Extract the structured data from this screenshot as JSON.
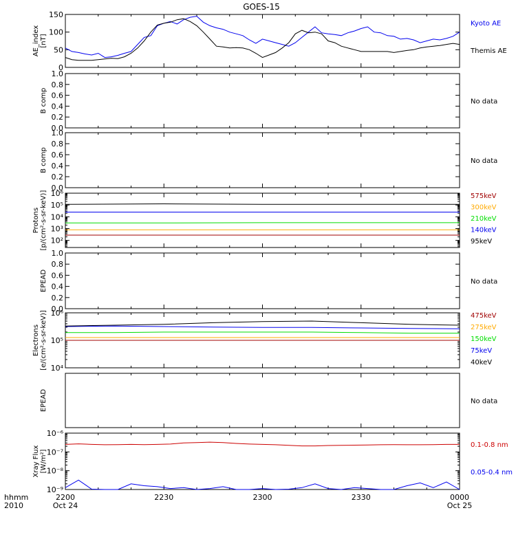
{
  "title": "GOES-15",
  "colors": {
    "black": "#000000",
    "blue": "#0000ee",
    "red": "#cc0000",
    "orange": "#ffaa00",
    "green": "#00dd00",
    "darkred": "#a00000"
  },
  "time_axis": {
    "row_label": "hhmm",
    "year": "2010",
    "ticks": [
      {
        "t": 0,
        "label": "2200",
        "sub": "Oct 24"
      },
      {
        "t": 30,
        "label": "2230",
        "sub": ""
      },
      {
        "t": 60,
        "label": "2300",
        "sub": ""
      },
      {
        "t": 90,
        "label": "2330",
        "sub": ""
      },
      {
        "t": 120,
        "label": "0000",
        "sub": "Oct 25"
      }
    ]
  },
  "chart_data": [
    {
      "type": "line",
      "panel": "ae",
      "ylabel": [
        "AE_index",
        "[nT]"
      ],
      "ylim": [
        0,
        150
      ],
      "yticks": [
        {
          "v": 0,
          "l": "0"
        },
        {
          "v": 50,
          "l": "50"
        },
        {
          "v": 100,
          "l": "100"
        },
        {
          "v": 150,
          "l": "150"
        }
      ],
      "x": [
        0,
        2,
        4,
        6,
        8,
        10,
        12,
        14,
        16,
        18,
        20,
        22,
        24,
        26,
        28,
        30,
        32,
        34,
        36,
        38,
        40,
        42,
        44,
        46,
        48,
        50,
        52,
        54,
        56,
        58,
        60,
        62,
        64,
        66,
        68,
        70,
        72,
        74,
        76,
        78,
        80,
        82,
        84,
        86,
        88,
        90,
        92,
        94,
        96,
        98,
        100,
        102,
        104,
        106,
        108,
        110,
        112,
        114,
        116,
        118,
        120
      ],
      "series": [
        {
          "name": "Kyoto AE",
          "color": "#0000ee",
          "values": [
            55,
            45,
            42,
            38,
            35,
            40,
            28,
            30,
            34,
            40,
            45,
            65,
            85,
            90,
            118,
            125,
            130,
            123,
            135,
            142,
            145,
            128,
            118,
            112,
            108,
            100,
            95,
            90,
            78,
            68,
            80,
            75,
            70,
            65,
            60,
            70,
            85,
            100,
            115,
            98,
            95,
            93,
            90,
            98,
            103,
            110,
            115,
            100,
            98,
            90,
            88,
            80,
            82,
            78,
            70,
            75,
            80,
            78,
            82,
            88,
            100
          ]
        },
        {
          "name": "Themis AE",
          "color": "#000000",
          "values": [
            28,
            22,
            20,
            20,
            20,
            22,
            24,
            26,
            25,
            30,
            40,
            55,
            75,
            100,
            120,
            125,
            128,
            135,
            138,
            130,
            118,
            100,
            80,
            60,
            58,
            55,
            56,
            55,
            50,
            40,
            28,
            35,
            42,
            55,
            70,
            95,
            105,
            98,
            100,
            95,
            75,
            70,
            60,
            55,
            50,
            45,
            45,
            45,
            45,
            45,
            42,
            45,
            48,
            50,
            55,
            58,
            60,
            62,
            65,
            68,
            65
          ]
        }
      ]
    },
    {
      "type": "line",
      "panel": "empty",
      "ylabel": [
        "B comp"
      ],
      "ylim": [
        0,
        1
      ],
      "yticks": [
        {
          "v": 0,
          "l": "0.0"
        },
        {
          "v": 0.2,
          "l": "0.2"
        },
        {
          "v": 0.4,
          "l": "0.4"
        },
        {
          "v": 0.6,
          "l": "0.6"
        },
        {
          "v": 0.8,
          "l": "0.8"
        },
        {
          "v": 1,
          "l": "1.0"
        }
      ],
      "note": "No data",
      "series": []
    },
    {
      "type": "line",
      "panel": "empty",
      "ylabel": [
        "B comp"
      ],
      "ylim": [
        0,
        1
      ],
      "yticks": [
        {
          "v": 0,
          "l": "0.0"
        },
        {
          "v": 0.2,
          "l": "0.2"
        },
        {
          "v": 0.4,
          "l": "0.4"
        },
        {
          "v": 0.6,
          "l": "0.6"
        },
        {
          "v": 0.8,
          "l": "0.8"
        },
        {
          "v": 1,
          "l": "1.0"
        }
      ],
      "note": "No data",
      "series": []
    },
    {
      "type": "line",
      "panel": "protons",
      "yscale": "log",
      "ylabel": [
        "Protons",
        "[p/(cm²-s-sr-keV)]"
      ],
      "ylim_exp": [
        1.4,
        6
      ],
      "yticks": [
        {
          "v": 2,
          "l": "10²"
        },
        {
          "v": 3,
          "l": "10³"
        },
        {
          "v": 4,
          "l": "10⁴"
        },
        {
          "v": 5,
          "l": "10⁵"
        },
        {
          "v": 6,
          "l": "10⁶"
        }
      ],
      "x": [
        0,
        30,
        60,
        90,
        120
      ],
      "series": [
        {
          "name": "575keV",
          "color": "#a00000",
          "values": [
            2.45,
            2.45,
            2.45,
            2.45,
            2.45
          ]
        },
        {
          "name": "300keV",
          "color": "#ffaa00",
          "values": [
            2.9,
            2.9,
            2.9,
            2.9,
            2.9
          ]
        },
        {
          "name": "210keV",
          "color": "#00dd00",
          "values": [
            3.48,
            3.48,
            3.5,
            3.5,
            3.5
          ]
        },
        {
          "name": "140keV",
          "color": "#0000ee",
          "values": [
            4.4,
            4.4,
            4.4,
            4.4,
            4.4
          ]
        },
        {
          "name": "95keV",
          "color": "#000000",
          "values": [
            5.05,
            5.1,
            5.05,
            5.05,
            5.05
          ]
        }
      ]
    },
    {
      "type": "line",
      "panel": "empty",
      "ylabel": [
        "EPEAD"
      ],
      "ylim": [
        0,
        1
      ],
      "yticks": [
        {
          "v": 0,
          "l": "0.0"
        },
        {
          "v": 0.2,
          "l": "0.2"
        },
        {
          "v": 0.4,
          "l": "0.4"
        },
        {
          "v": 0.6,
          "l": "0.6"
        },
        {
          "v": 0.8,
          "l": "0.8"
        },
        {
          "v": 1,
          "l": "1.0"
        }
      ],
      "note": "No data",
      "series": []
    },
    {
      "type": "line",
      "panel": "electrons",
      "yscale": "log",
      "ylabel": [
        "Electrons",
        "[e/(cm²-s-sr-keV)]"
      ],
      "ylim_exp": [
        4,
        6
      ],
      "yticks": [
        {
          "v": 4,
          "l": "10⁴"
        },
        {
          "v": 5,
          "l": "10⁵"
        },
        {
          "v": 6,
          "l": "10⁶"
        }
      ],
      "x": [
        0,
        15,
        30,
        45,
        60,
        75,
        90,
        105,
        120
      ],
      "series": [
        {
          "name": "475keV",
          "color": "#a00000",
          "values": [
            5.0,
            5.0,
            5.0,
            5.0,
            5.0,
            5.0,
            5.0,
            5.0,
            5.0
          ]
        },
        {
          "name": "275keV",
          "color": "#ffaa00",
          "values": [
            5.1,
            5.1,
            5.1,
            5.1,
            5.1,
            5.1,
            5.1,
            5.1,
            5.1
          ]
        },
        {
          "name": "150keV",
          "color": "#00dd00",
          "values": [
            5.28,
            5.28,
            5.3,
            5.3,
            5.3,
            5.3,
            5.28,
            5.26,
            5.26
          ]
        },
        {
          "name": "75keV",
          "color": "#0000ee",
          "values": [
            5.5,
            5.52,
            5.5,
            5.48,
            5.47,
            5.47,
            5.45,
            5.43,
            5.42
          ]
        },
        {
          "name": "40keV",
          "color": "#000000",
          "values": [
            5.52,
            5.55,
            5.58,
            5.64,
            5.68,
            5.7,
            5.64,
            5.58,
            5.55
          ]
        }
      ]
    },
    {
      "type": "line",
      "panel": "empty",
      "ylabel": [
        "EPEAD"
      ],
      "ylim": [
        0,
        1
      ],
      "yticks": [],
      "note": "No data",
      "series": []
    },
    {
      "type": "line",
      "panel": "xray",
      "yscale": "log",
      "ylabel": [
        "Xray Flux",
        "[W/m²]"
      ],
      "ylim_exp": [
        -9,
        -6
      ],
      "yticks": [
        {
          "v": -9,
          "l": "10⁻⁹"
        },
        {
          "v": -8,
          "l": "10⁻⁸"
        },
        {
          "v": -7,
          "l": "10⁻⁷"
        },
        {
          "v": -6,
          "l": "10⁻⁶"
        }
      ],
      "x": [
        0,
        4,
        8,
        12,
        16,
        20,
        24,
        28,
        32,
        36,
        40,
        44,
        48,
        52,
        56,
        60,
        64,
        68,
        72,
        76,
        80,
        84,
        88,
        92,
        96,
        100,
        104,
        108,
        112,
        116,
        120
      ],
      "series": [
        {
          "name": "0.1-0.8 nm",
          "color": "#cc0000",
          "values": [
            -6.6,
            -6.57,
            -6.6,
            -6.62,
            -6.61,
            -6.6,
            -6.61,
            -6.6,
            -6.58,
            -6.52,
            -6.5,
            -6.48,
            -6.5,
            -6.55,
            -6.58,
            -6.6,
            -6.62,
            -6.65,
            -6.68,
            -6.68,
            -6.66,
            -6.65,
            -6.64,
            -6.63,
            -6.62,
            -6.61,
            -6.62,
            -6.62,
            -6.61,
            -6.6,
            -6.6
          ]
        },
        {
          "name": "0.05-0.4 nm",
          "color": "#0000ee",
          "values": [
            -8.9,
            -8.5,
            -8.98,
            -9.0,
            -9.0,
            -8.7,
            -8.8,
            -8.85,
            -8.95,
            -8.9,
            -9.0,
            -8.95,
            -8.85,
            -9.0,
            -9.0,
            -8.95,
            -9.0,
            -8.98,
            -8.9,
            -8.7,
            -8.95,
            -9.0,
            -8.9,
            -8.95,
            -9.0,
            -9.0,
            -8.8,
            -8.65,
            -8.9,
            -8.6,
            -9.0
          ]
        }
      ]
    }
  ],
  "legends": {
    "ae": [
      {
        "text": "Kyoto AE",
        "color": "#0000ee"
      },
      {
        "text": "Themis AE",
        "color": "#000000"
      }
    ],
    "protons": [
      {
        "text": "575keV",
        "color": "#a00000"
      },
      {
        "text": "300keV",
        "color": "#ffaa00"
      },
      {
        "text": "210keV",
        "color": "#00dd00"
      },
      {
        "text": "140keV",
        "color": "#0000ee"
      },
      {
        "text": "95keV",
        "color": "#000000"
      }
    ],
    "electrons": [
      {
        "text": "475keV",
        "color": "#a00000"
      },
      {
        "text": "275keV",
        "color": "#ffaa00"
      },
      {
        "text": "150keV",
        "color": "#00dd00"
      },
      {
        "text": "75keV",
        "color": "#0000ee"
      },
      {
        "text": "40keV",
        "color": "#000000"
      }
    ],
    "xray": [
      {
        "text": "0.1-0.8 nm",
        "color": "#cc0000"
      },
      {
        "text": "0.05-0.4 nm",
        "color": "#0000ee"
      }
    ]
  }
}
